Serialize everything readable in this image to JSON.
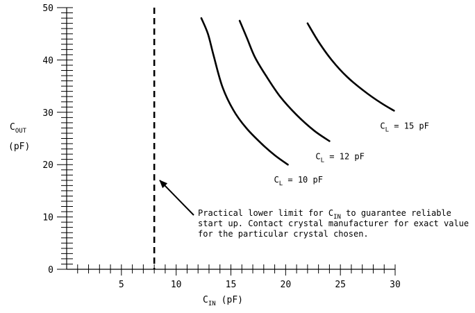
{
  "chart_data": {
    "type": "line",
    "xlabel": {
      "main": "C",
      "sub": "IN",
      "unit": "(pF)"
    },
    "ylabel": {
      "main": "C",
      "sub": "OUT",
      "unit": "(pF)"
    },
    "xlim": [
      0,
      30
    ],
    "ylim": [
      0,
      50
    ],
    "x_tick_labels": [
      5,
      10,
      15,
      20,
      25,
      30
    ],
    "y_tick_labels": [
      0,
      10,
      20,
      30,
      40,
      50
    ],
    "x_minor_step": 1,
    "y_minor_step": 1,
    "grid": false,
    "series": [
      {
        "name": "C_L = 10 pF",
        "label": {
          "pre": "C",
          "sub": "L",
          "post": " = 10 pF"
        },
        "x": [
          12.3,
          12.9,
          13.4,
          14.2,
          15.2,
          16.4,
          17.8,
          19.0,
          20.2
        ],
        "y": [
          48.0,
          45.0,
          41.0,
          35.0,
          30.5,
          27.0,
          24.0,
          21.8,
          20.0
        ]
      },
      {
        "name": "C_L = 12 pF",
        "label": {
          "pre": "C",
          "sub": "L",
          "post": " = 12 pF"
        },
        "x": [
          15.8,
          16.5,
          17.2,
          18.2,
          19.5,
          21.0,
          22.6,
          24.0
        ],
        "y": [
          47.5,
          44.0,
          40.5,
          37.0,
          33.0,
          29.5,
          26.5,
          24.5
        ]
      },
      {
        "name": "C_L = 15 pF",
        "label": {
          "pre": "C",
          "sub": "L",
          "post": " = 15 pF"
        },
        "x": [
          22.0,
          23.0,
          24.2,
          25.6,
          27.2,
          28.7,
          29.9
        ],
        "y": [
          47.0,
          43.5,
          40.0,
          36.8,
          34.0,
          31.8,
          30.3
        ]
      }
    ],
    "reference_line": {
      "style": "dashed",
      "x": 8
    },
    "annotation": {
      "arrow_to": {
        "x": 8.5,
        "y": 17
      },
      "lines": [
        {
          "pre": "Practical lower limit for C",
          "sub": "IN",
          "post": " to guarantee reliable"
        },
        {
          "pre": "start up. Contact crystal manufacturer for exact value",
          "sub": "",
          "post": ""
        },
        {
          "pre": "for the particular crystal chosen.",
          "sub": "",
          "post": ""
        }
      ]
    }
  }
}
